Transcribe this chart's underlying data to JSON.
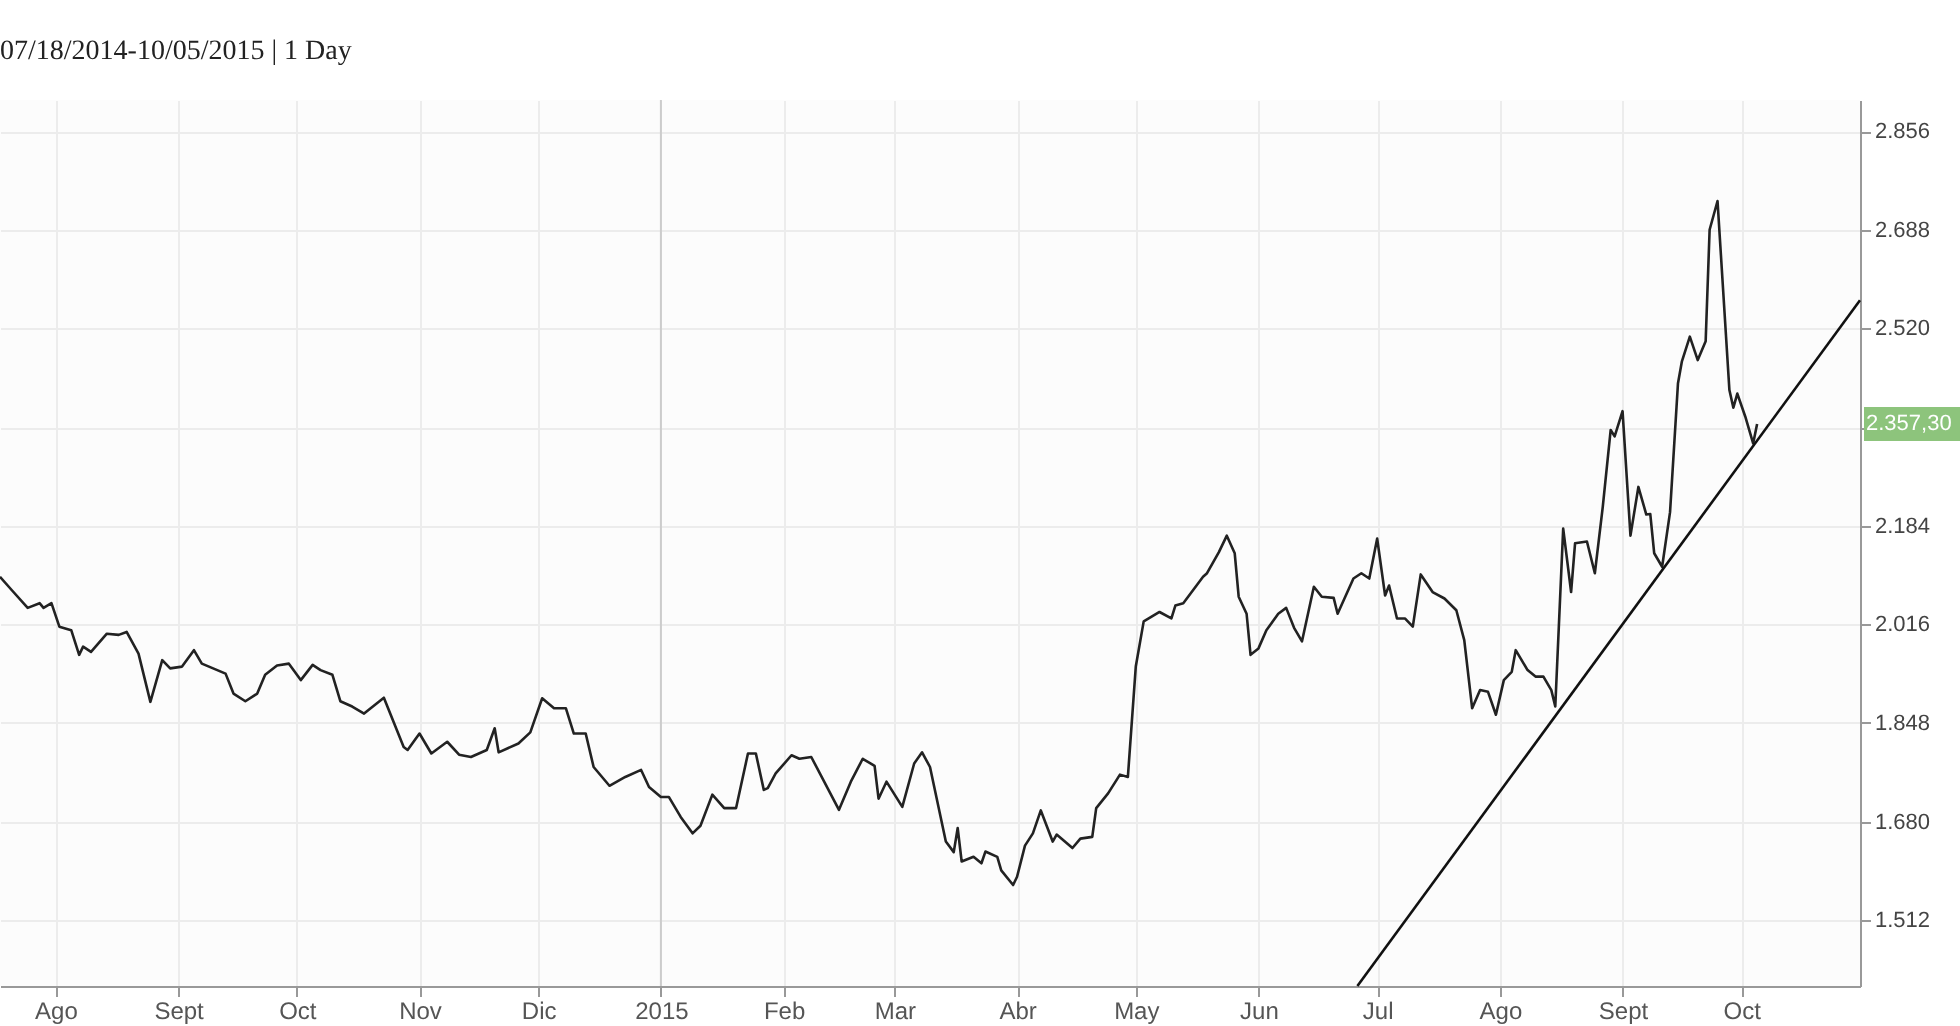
{
  "chart_data": {
    "type": "line",
    "title": "07/18/2014-10/05/2015 | 1 Day",
    "xlim": [
      "2014-07-18",
      "2015-10-31"
    ],
    "xticks": [
      {
        "value": "2014-08-01",
        "label": "Ago"
      },
      {
        "value": "2014-09-01",
        "label": "Sept"
      },
      {
        "value": "2014-10-01",
        "label": "Oct"
      },
      {
        "value": "2014-11-01",
        "label": "Nov"
      },
      {
        "value": "2014-12-01",
        "label": "Dic"
      },
      {
        "value": "2015-01-01",
        "label": "2015"
      },
      {
        "value": "2015-02-01",
        "label": "Feb"
      },
      {
        "value": "2015-03-01",
        "label": "Mar"
      },
      {
        "value": "2015-04-01",
        "label": "Abr"
      },
      {
        "value": "2015-05-01",
        "label": "May"
      },
      {
        "value": "2015-06-01",
        "label": "Jun"
      },
      {
        "value": "2015-07-01",
        "label": "Jul"
      },
      {
        "value": "2015-08-01",
        "label": "Ago"
      },
      {
        "value": "2015-09-01",
        "label": "Sept"
      },
      {
        "value": "2015-10-01",
        "label": "Oct"
      }
    ],
    "ylim": [
      1400,
      2909
    ],
    "yticks": [
      {
        "value": 1512,
        "label": "1.512"
      },
      {
        "value": 1680,
        "label": "1.680"
      },
      {
        "value": 1848,
        "label": "1.848"
      },
      {
        "value": 2016,
        "label": "2.016"
      },
      {
        "value": 2184,
        "label": "2.184"
      },
      {
        "value": 2352,
        "label": null
      },
      {
        "value": 2520,
        "label": "2.520"
      },
      {
        "value": 2688,
        "label": "2.688"
      },
      {
        "value": 2856,
        "label": "2.856"
      }
    ],
    "grid": true,
    "ref_lines": [
      {
        "axis": "x",
        "value": "2015-01-01",
        "color": "#cccccc"
      }
    ],
    "annotations": [
      "2.357,30"
    ],
    "series": [
      {
        "color": "#222222",
        "x": [
          "2014-07-18",
          "2014-07-21",
          "2014-07-25",
          "2014-07-28",
          "2014-07-29",
          "2014-07-31",
          "2014-08-02",
          "2014-08-05",
          "2014-08-07",
          "2014-08-08",
          "2014-08-10",
          "2014-08-14",
          "2014-08-17",
          "2014-08-19",
          "2014-08-22",
          "2014-08-25",
          "2014-08-28",
          "2014-08-30",
          "2014-09-02",
          "2014-09-05",
          "2014-09-07",
          "2014-09-13",
          "2014-09-15",
          "2014-09-18",
          "2014-09-21",
          "2014-09-23",
          "2014-09-26",
          "2014-09-29",
          "2014-10-02",
          "2014-10-05",
          "2014-10-07",
          "2014-10-10",
          "2014-10-12",
          "2014-10-15",
          "2014-10-18",
          "2014-10-23",
          "2014-10-28",
          "2014-10-29",
          "2014-11-01",
          "2014-11-04",
          "2014-11-08",
          "2014-11-11",
          "2014-11-14",
          "2014-11-18",
          "2014-11-20",
          "2014-11-21",
          "2014-11-26",
          "2014-11-29",
          "2014-12-02",
          "2014-12-05",
          "2014-12-08",
          "2014-12-10",
          "2014-12-13",
          "2014-12-15",
          "2014-12-19",
          "2014-12-23",
          "2014-12-27",
          "2014-12-29",
          "2015-01-01",
          "2015-01-03",
          "2015-01-06",
          "2015-01-09",
          "2015-01-11",
          "2015-01-14",
          "2015-01-17",
          "2015-01-20",
          "2015-01-23",
          "2015-01-25",
          "2015-01-27",
          "2015-01-28",
          "2015-01-30",
          "2015-02-03",
          "2015-02-05",
          "2015-02-08",
          "2015-02-15",
          "2015-02-18",
          "2015-02-21",
          "2015-02-24",
          "2015-02-25",
          "2015-02-27",
          "2015-03-03",
          "2015-03-06",
          "2015-03-08",
          "2015-03-10",
          "2015-03-14",
          "2015-03-16",
          "2015-03-17",
          "2015-03-18",
          "2015-03-21",
          "2015-03-23",
          "2015-03-24",
          "2015-03-27",
          "2015-03-28",
          "2015-03-31",
          "2015-04-01",
          "2015-04-03",
          "2015-04-05",
          "2015-04-07",
          "2015-04-10",
          "2015-04-11",
          "2015-04-15",
          "2015-04-17",
          "2015-04-20",
          "2015-04-21",
          "2015-04-24",
          "2015-04-27",
          "2015-04-29",
          "2015-05-01",
          "2015-05-03",
          "2015-05-05",
          "2015-05-07",
          "2015-05-10",
          "2015-05-11",
          "2015-05-13",
          "2015-05-18",
          "2015-05-19",
          "2015-05-22",
          "2015-05-24",
          "2015-05-26",
          "2015-05-27",
          "2015-05-29",
          "2015-05-30",
          "2015-06-01",
          "2015-06-03",
          "2015-06-06",
          "2015-06-08",
          "2015-06-10",
          "2015-06-12",
          "2015-06-15",
          "2015-06-17",
          "2015-06-20",
          "2015-06-21",
          "2015-06-25",
          "2015-06-27",
          "2015-06-29",
          "2015-07-01",
          "2015-07-03",
          "2015-07-04",
          "2015-07-06",
          "2015-07-08",
          "2015-07-10",
          "2015-07-12",
          "2015-07-15",
          "2015-07-18",
          "2015-07-21",
          "2015-07-23",
          "2015-07-25",
          "2015-07-27",
          "2015-07-29",
          "2015-07-31",
          "2015-08-02",
          "2015-08-04",
          "2015-08-05",
          "2015-08-08",
          "2015-08-10",
          "2015-08-12",
          "2015-08-14",
          "2015-08-15",
          "2015-08-17",
          "2015-08-19",
          "2015-08-20",
          "2015-08-23",
          "2015-08-25",
          "2015-08-27",
          "2015-08-29",
          "2015-08-30",
          "2015-09-01",
          "2015-09-03",
          "2015-09-05",
          "2015-09-07",
          "2015-09-08",
          "2015-09-09",
          "2015-09-11",
          "2015-09-13",
          "2015-09-15",
          "2015-09-16",
          "2015-09-18",
          "2015-09-20",
          "2015-09-22",
          "2015-09-23",
          "2015-09-25",
          "2015-09-28",
          "2015-09-29",
          "2015-09-30",
          "2015-10-02",
          "2015-10-04",
          "2015-10-05"
        ],
        "values": [
          2097,
          2074,
          2044,
          2052,
          2044,
          2052,
          2012,
          2006,
          1964,
          1978,
          1969,
          2000,
          1998,
          2003,
          1966,
          1884,
          1955,
          1941,
          1944,
          1972,
          1949,
          1932,
          1898,
          1885,
          1898,
          1930,
          1946,
          1949,
          1921,
          1947,
          1938,
          1930,
          1885,
          1876,
          1864,
          1891,
          1807,
          1802,
          1830,
          1796,
          1816,
          1794,
          1790,
          1802,
          1839,
          1798,
          1813,
          1832,
          1890,
          1873,
          1873,
          1830,
          1830,
          1773,
          1741,
          1756,
          1768,
          1739,
          1722,
          1722,
          1688,
          1660,
          1673,
          1726,
          1703,
          1703,
          1796,
          1796,
          1734,
          1737,
          1762,
          1793,
          1787,
          1790,
          1700,
          1748,
          1787,
          1775,
          1719,
          1748,
          1705,
          1779,
          1798,
          1773,
          1646,
          1628,
          1669,
          1612,
          1620,
          1609,
          1629,
          1620,
          1597,
          1572,
          1586,
          1639,
          1660,
          1699,
          1646,
          1658,
          1635,
          1651,
          1654,
          1703,
          1728,
          1760,
          1756,
          1944,
          2021,
          2029,
          2037,
          2026,
          2048,
          2052,
          2097,
          2103,
          2139,
          2167,
          2137,
          2063,
          2034,
          1964,
          1975,
          2006,
          2034,
          2044,
          2010,
          1987,
          2080,
          2063,
          2061,
          2034,
          2094,
          2103,
          2094,
          2162,
          2065,
          2082,
          2026,
          2026,
          2012,
          2101,
          2071,
          2060,
          2040,
          1989,
          1873,
          1904,
          1901,
          1862,
          1921,
          1935,
          1972,
          1938,
          1927,
          1927,
          1904,
          1876,
          2179,
          2071,
          2154,
          2157,
          2103,
          2216,
          2347,
          2336,
          2379,
          2167,
          2250,
          2203,
          2204,
          2137,
          2114,
          2207,
          2426,
          2464,
          2506,
          2466,
          2498,
          2688,
          2737,
          2415,
          2385,
          2409,
          2370,
          2324,
          2357.3
        ]
      },
      {
        "type": "line",
        "color": "#111111",
        "x": [
          "2015-06-26",
          "2015-10-31"
        ],
        "values": [
          1400,
          2568
        ]
      }
    ]
  }
}
